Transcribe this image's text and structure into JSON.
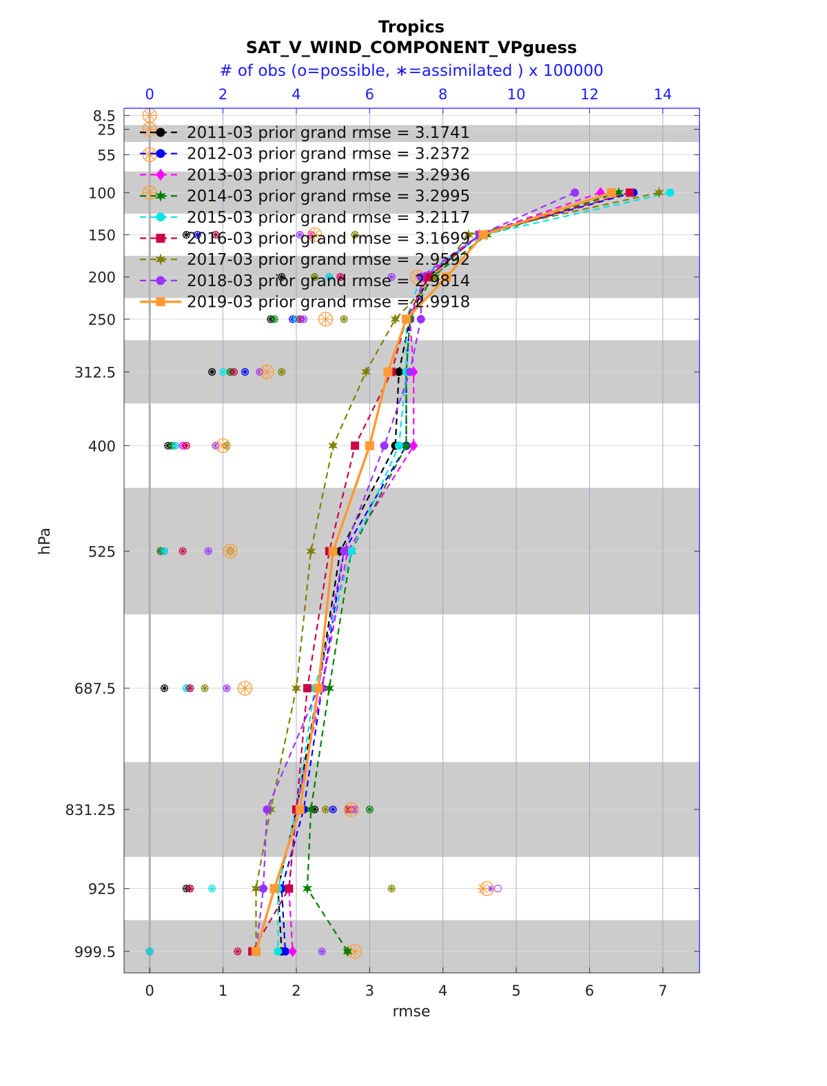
{
  "chart_data": {
    "type": "line",
    "title": "Tropics",
    "subtitle": "SAT_V_WIND_COMPONENT_VPguess",
    "top_axis_label": "# of obs (o=possible, ∗=assimilated ) x 100000",
    "xlabel": "rmse",
    "ylabel": "hPa",
    "xlim": [
      -0.35,
      7.5
    ],
    "x_ticks": [
      0,
      1,
      2,
      3,
      4,
      5,
      6,
      7
    ],
    "top_xlim": [
      -0.7,
      15
    ],
    "top_ticks": [
      0,
      2,
      4,
      6,
      8,
      10,
      12,
      14
    ],
    "levels": [
      8.5,
      25,
      55,
      100,
      150,
      200,
      250,
      312.5,
      400,
      525,
      687.5,
      831.25,
      925,
      999.5
    ],
    "level_labels": [
      "8.5",
      "25",
      "55",
      "100",
      "150",
      "200",
      "250",
      "312.5",
      "400",
      "525",
      "687.5",
      "831.25",
      "925",
      "999.5"
    ],
    "ylim": [
      0,
      1025
    ],
    "y_scale": "linear, inverted",
    "shaded_bands": [
      [
        20,
        40
      ],
      [
        75,
        125
      ],
      [
        175,
        225
      ],
      [
        275,
        350
      ],
      [
        450,
        600
      ],
      [
        775,
        887.5
      ],
      [
        962.5,
        1037
      ]
    ],
    "grid": true,
    "legend_position": "top-left",
    "series": [
      {
        "label": "2011-03 prior grand rmse = 3.1741",
        "color": "#000000",
        "marker": "circle",
        "style": "dashed",
        "rmse": [
          null,
          null,
          null,
          6.3,
          4.5,
          3.8,
          3.55,
          3.4,
          3.35,
          2.6,
          2.3,
          2.0,
          1.75,
          1.8
        ],
        "possible": [
          null,
          null,
          null,
          null,
          1.0,
          3.6,
          3.3,
          1.7,
          0.5,
          0.3,
          0.4,
          4.5,
          1.0,
          0.0
        ],
        "assimilated": [
          null,
          null,
          null,
          null,
          1.0,
          3.6,
          3.3,
          1.7,
          0.5,
          0.3,
          0.4,
          4.5,
          1.0,
          0.0
        ]
      },
      {
        "label": "2012-03 prior grand rmse = 3.2372",
        "color": "#0000ff",
        "marker": "circle",
        "style": "dashed",
        "rmse": [
          null,
          null,
          null,
          6.6,
          4.5,
          3.75,
          3.55,
          3.5,
          3.5,
          2.65,
          2.35,
          2.1,
          1.8,
          1.85
        ],
        "possible": [
          null,
          null,
          null,
          null,
          1.3,
          4.9,
          3.9,
          2.6,
          0.7,
          0.4,
          1.0,
          5.0,
          1.1,
          0.0
        ],
        "assimilated": [
          null,
          null,
          null,
          null,
          1.3,
          4.9,
          3.9,
          2.6,
          0.7,
          0.4,
          1.0,
          5.0,
          1.1,
          0.0
        ]
      },
      {
        "label": "2013-03 prior grand rmse = 3.2936",
        "color": "#ff00ff",
        "marker": "diamond",
        "style": "dashed",
        "rmse": [
          null,
          null,
          null,
          6.15,
          4.5,
          3.75,
          3.55,
          3.6,
          3.6,
          2.7,
          2.35,
          2.0,
          1.9,
          1.95
        ],
        "possible": [
          null,
          null,
          null,
          null,
          4.4,
          5.2,
          4.1,
          2.2,
          0.9,
          0.3,
          1.1,
          5.5,
          1.1,
          0.0
        ],
        "assimilated": [
          null,
          null,
          null,
          null,
          4.4,
          5.2,
          4.1,
          2.2,
          0.9,
          0.3,
          1.1,
          5.5,
          1.1,
          0.0
        ]
      },
      {
        "label": "2014-03 prior grand rmse = 3.2995",
        "color": "#008000",
        "marker": "hexagram",
        "style": "dashed",
        "rmse": [
          null,
          null,
          null,
          6.4,
          4.6,
          3.85,
          3.55,
          3.5,
          3.5,
          2.75,
          2.45,
          2.2,
          2.15,
          2.7
        ],
        "possible": [
          null,
          null,
          null,
          null,
          1.8,
          4.5,
          3.4,
          2.2,
          0.6,
          0.3,
          1.1,
          6.0,
          1.1,
          0.0
        ],
        "assimilated": [
          null,
          null,
          null,
          null,
          1.8,
          4.5,
          3.4,
          2.2,
          0.6,
          0.3,
          1.1,
          6.0,
          1.1,
          0.0
        ]
      },
      {
        "label": "2015-03 prior grand rmse = 3.2117",
        "color": "#00e5e5",
        "marker": "circle",
        "style": "dashed",
        "rmse": [
          null,
          null,
          null,
          7.1,
          4.55,
          3.7,
          3.5,
          3.5,
          3.4,
          2.75,
          2.25,
          2.0,
          1.75,
          1.75
        ],
        "possible": [
          null,
          null,
          null,
          null,
          1.8,
          4.9,
          4.0,
          2.0,
          0.7,
          0.4,
          1.0,
          5.4,
          1.7,
          0.0
        ],
        "assimilated": [
          null,
          null,
          null,
          null,
          1.8,
          4.9,
          4.0,
          2.0,
          0.7,
          0.4,
          1.0,
          5.4,
          1.7,
          0.0
        ]
      },
      {
        "label": "2016-03 prior grand rmse = 3.1699",
        "color": "#cc0044",
        "marker": "square",
        "style": "dashed",
        "rmse": [
          null,
          null,
          null,
          6.55,
          4.5,
          3.8,
          3.5,
          3.3,
          2.8,
          2.45,
          2.15,
          2.0,
          1.9,
          1.4
        ],
        "possible": [
          null,
          null,
          null,
          null,
          1.8,
          5.2,
          4.1,
          2.3,
          1.0,
          0.9,
          1.1,
          5.4,
          1.1,
          2.4
        ],
        "assimilated": [
          null,
          null,
          null,
          null,
          1.8,
          5.2,
          4.1,
          2.3,
          1.0,
          0.9,
          1.1,
          5.4,
          1.1,
          2.4
        ]
      },
      {
        "label": "2017-03 prior grand rmse = 2.9592",
        "color": "#808000",
        "marker": "hexagram",
        "style": "dashed",
        "rmse": [
          null,
          null,
          null,
          6.95,
          4.35,
          3.9,
          3.35,
          2.95,
          2.5,
          2.2,
          2.0,
          1.65,
          1.45,
          1.45
        ],
        "possible": [
          null,
          null,
          null,
          null,
          5.6,
          4.5,
          5.3,
          3.6,
          2.1,
          2.2,
          1.5,
          4.8,
          6.6,
          5.4
        ],
        "assimilated": [
          null,
          null,
          null,
          null,
          5.6,
          4.5,
          5.3,
          3.6,
          2.1,
          2.2,
          1.5,
          4.8,
          6.6,
          5.4
        ]
      },
      {
        "label": "2018-03 prior grand rmse = 2.9814",
        "color": "#9933ff",
        "marker": "circle",
        "style": "dashed",
        "rmse": [
          null,
          null,
          null,
          5.8,
          4.5,
          3.7,
          3.7,
          3.55,
          3.2,
          2.65,
          2.3,
          1.6,
          1.55,
          1.45
        ],
        "possible": [
          null,
          null,
          null,
          null,
          4.1,
          6.6,
          4.2,
          3.0,
          1.8,
          1.6,
          2.1,
          5.6,
          9.5,
          4.7
        ],
        "assimilated": [
          null,
          null,
          null,
          null,
          4.1,
          6.6,
          4.2,
          3.0,
          1.8,
          1.6,
          2.1,
          5.6,
          9.3,
          4.7
        ]
      },
      {
        "label": "2019-03 prior grand rmse = 2.9918",
        "color": "#ff9933",
        "marker": "square",
        "style": "solid",
        "rmse": [
          null,
          null,
          null,
          6.3,
          4.55,
          4.05,
          3.5,
          3.25,
          3.0,
          2.5,
          2.3,
          2.05,
          1.7,
          1.45
        ],
        "possible": [
          0.0,
          0.0,
          0.0,
          0.0,
          4.5,
          7.3,
          4.8,
          3.2,
          2.0,
          2.2,
          2.6,
          5.5,
          9.2,
          5.6
        ],
        "assimilated": [
          0.0,
          0.0,
          0.0,
          0.0,
          4.5,
          7.3,
          4.8,
          3.2,
          2.0,
          2.2,
          2.6,
          5.5,
          9.1,
          5.6
        ]
      }
    ]
  }
}
